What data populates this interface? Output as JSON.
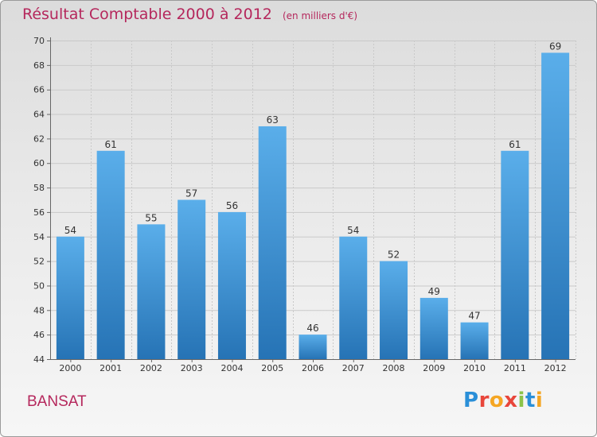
{
  "header": {
    "title": "Résultat Comptable 2000 à 2012",
    "unit": "(en milliers d'€)"
  },
  "footer": {
    "commune": "BANSAT",
    "logo_text": "Proxiti",
    "logo_colors": [
      "#2a8fd8",
      "#e8463b",
      "#f5a623",
      "#e8463b",
      "#8bc34a",
      "#2a8fd8",
      "#f5a623"
    ]
  },
  "colors": {
    "bar_top": "#5aaeea",
    "bar_bottom": "#2673b5",
    "accent": "#b5275c"
  },
  "chart_data": {
    "type": "bar",
    "title": "Résultat Comptable 2000 à 2012",
    "ylabel": "(en milliers d'€)",
    "xlabel": "",
    "categories": [
      "2000",
      "2001",
      "2002",
      "2003",
      "2004",
      "2005",
      "2006",
      "2007",
      "2008",
      "2009",
      "2010",
      "2011",
      "2012"
    ],
    "values": [
      54,
      61,
      55,
      57,
      56,
      63,
      46,
      54,
      52,
      49,
      47,
      61,
      69
    ],
    "ylim": [
      44,
      70
    ],
    "yticks": [
      44,
      46,
      48,
      50,
      52,
      54,
      56,
      58,
      60,
      62,
      64,
      66,
      68,
      70
    ],
    "grid": true
  }
}
